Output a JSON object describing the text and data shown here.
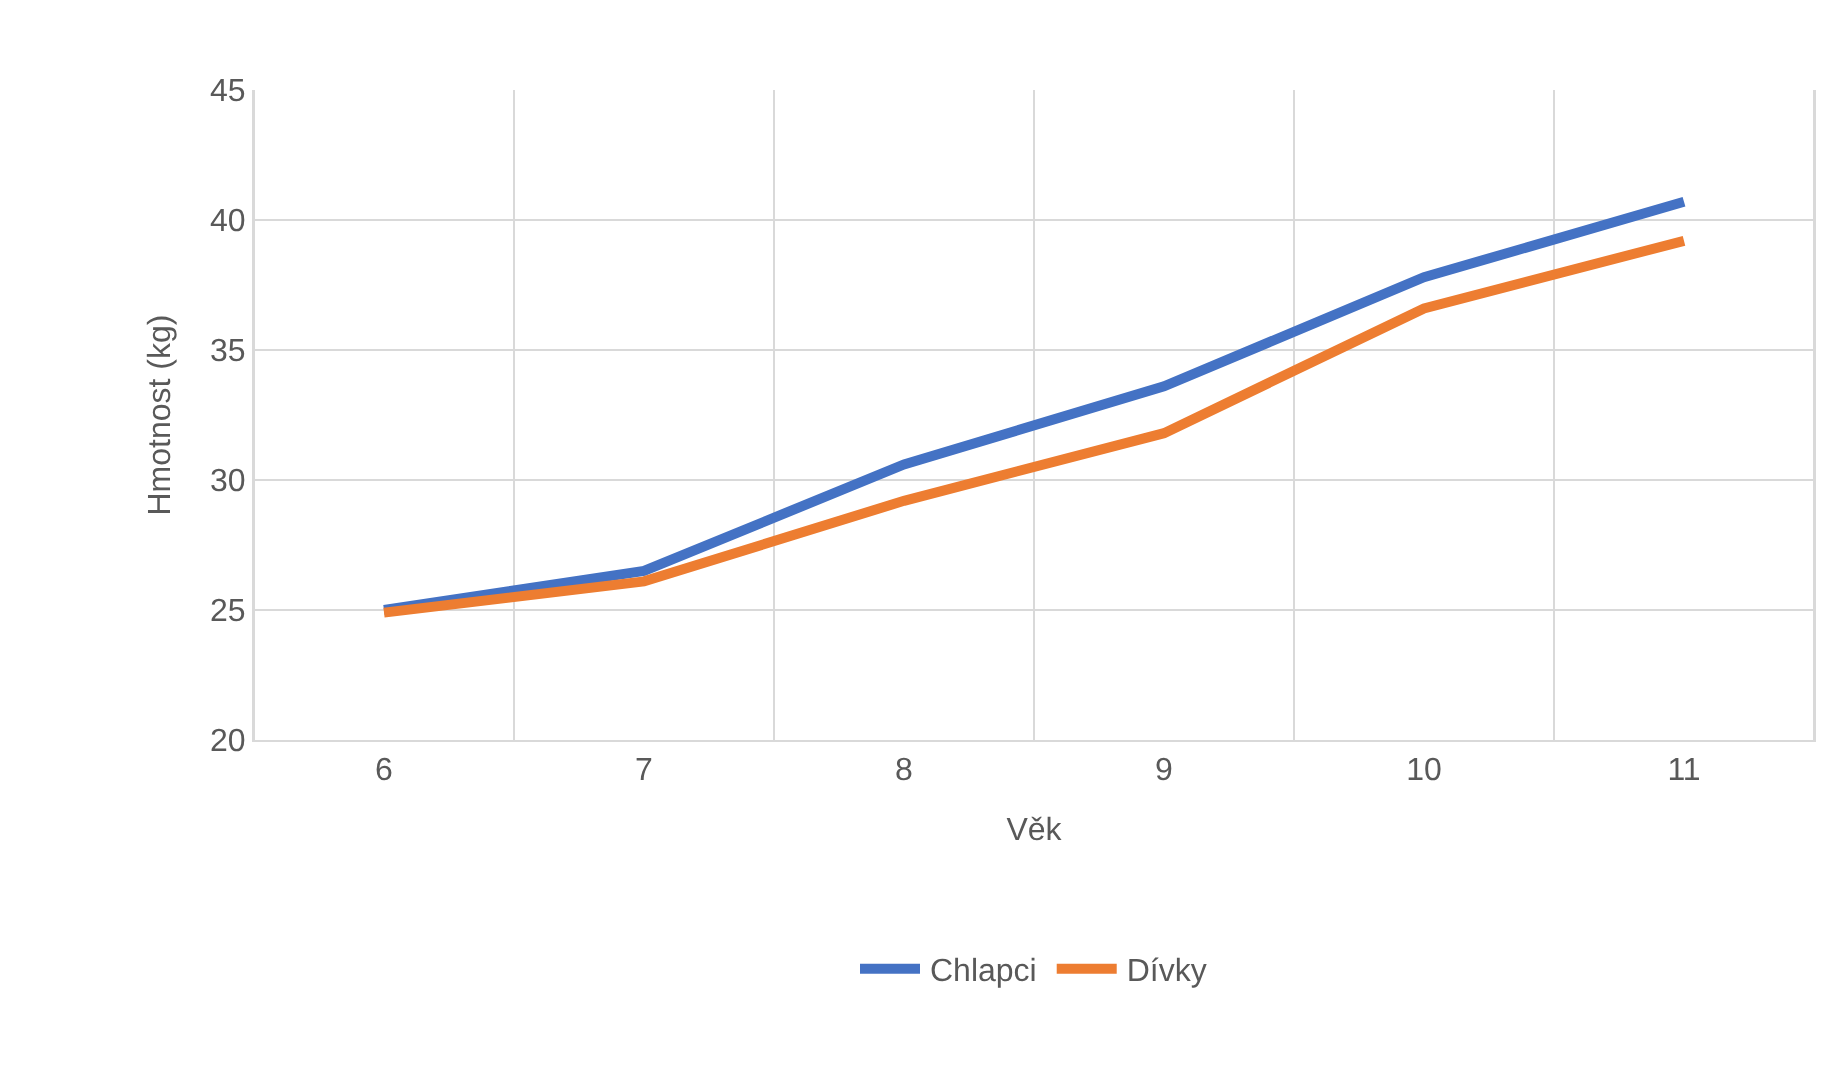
{
  "chart_data": {
    "type": "line",
    "xlabel": "Věk",
    "ylabel": "Hmotnost (kg)",
    "categories": [
      "6",
      "7",
      "8",
      "9",
      "10",
      "11"
    ],
    "series": [
      {
        "name": "Chlapci",
        "color": "#4472c4",
        "values": [
          25.0,
          26.5,
          30.6,
          33.6,
          37.8,
          40.7
        ]
      },
      {
        "name": "Dívky",
        "color": "#ed7d31",
        "values": [
          24.9,
          26.1,
          29.2,
          31.8,
          36.6,
          39.2
        ]
      }
    ],
    "ylim": [
      20,
      45
    ],
    "yticks": [
      20,
      25,
      30,
      35,
      40,
      45
    ],
    "grid": true,
    "legend": "bottom",
    "marker": "none",
    "line_style": "solid"
  }
}
